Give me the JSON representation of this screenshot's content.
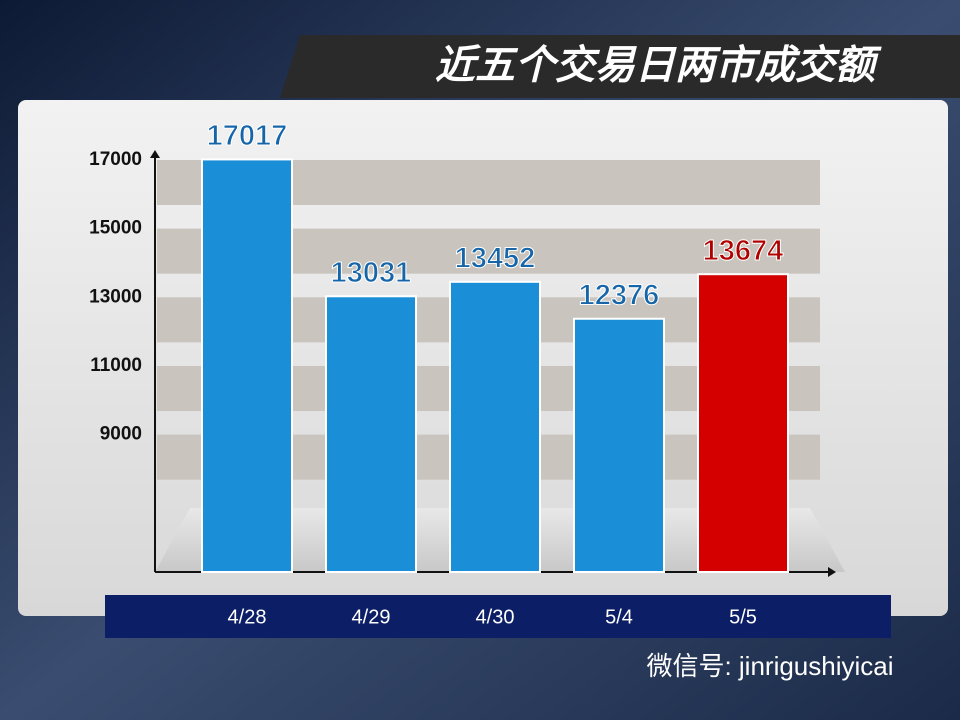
{
  "chart_data": {
    "type": "bar",
    "title": "近五个交易日两市成交额",
    "categories": [
      "4/28",
      "4/29",
      "4/30",
      "5/4",
      "5/5"
    ],
    "values": [
      17017,
      13031,
      13452,
      12376,
      13674
    ],
    "colors": [
      "#1a8fd8",
      "#1a8fd8",
      "#1a8fd8",
      "#1a8fd8",
      "#d40000"
    ],
    "label_colors": [
      "#1565a8",
      "#1565a8",
      "#1565a8",
      "#1565a8",
      "#b00000"
    ],
    "ylim": [
      5000,
      17000
    ],
    "yticks": [
      9000,
      11000,
      13000,
      15000,
      17000
    ],
    "grid": true,
    "watermark": "微信号: jinrigushiyicai"
  }
}
